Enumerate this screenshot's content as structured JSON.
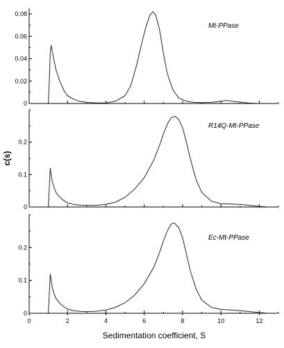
{
  "chart_data": {
    "type": "line",
    "xlabel": "Sedimentation coefficient, S",
    "ylabel": "c(s)",
    "xlim": [
      0,
      13
    ],
    "xticks": [
      0,
      2,
      4,
      6,
      8,
      10,
      12
    ],
    "xtick_labels": [
      "0",
      "2",
      "4",
      "6",
      "8",
      "10",
      "12"
    ],
    "panels": [
      {
        "label": "Mt-PPase",
        "ylim": [
          0,
          0.085
        ],
        "yticks": [
          0,
          0.02,
          0.04,
          0.06,
          0.08
        ],
        "ytick_labels": [
          "0",
          "0.02",
          "0.04",
          "0.06",
          "0.08"
        ],
        "x": [
          1.0,
          1.05,
          1.1,
          1.15,
          1.2,
          1.3,
          1.4,
          1.6,
          1.8,
          2.0,
          2.3,
          2.6,
          3.0,
          3.5,
          4.0,
          4.5,
          5.0,
          5.3,
          5.6,
          5.9,
          6.1,
          6.3,
          6.45,
          6.6,
          6.8,
          7.0,
          7.2,
          7.5,
          7.8,
          8.2,
          8.6,
          9.0,
          9.5,
          10.0,
          10.3,
          10.6,
          11.0,
          11.5,
          12.0
        ],
        "values": [
          0.0,
          0.02,
          0.046,
          0.052,
          0.047,
          0.038,
          0.03,
          0.02,
          0.012,
          0.007,
          0.004,
          0.002,
          0.001,
          0.0005,
          0.0005,
          0.002,
          0.007,
          0.016,
          0.034,
          0.056,
          0.069,
          0.079,
          0.082,
          0.079,
          0.066,
          0.045,
          0.027,
          0.012,
          0.005,
          0.002,
          0.001,
          0.0008,
          0.001,
          0.002,
          0.0028,
          0.002,
          0.0012,
          0.0004,
          0.0
        ]
      },
      {
        "label": "R14Q-Mt-PPase",
        "ylim": [
          0,
          0.3
        ],
        "yticks": [
          0,
          0.1,
          0.2
        ],
        "ytick_labels": [
          "0",
          "0.1",
          "0.2"
        ],
        "x": [
          1.0,
          1.05,
          1.1,
          1.15,
          1.2,
          1.3,
          1.4,
          1.6,
          1.8,
          2.0,
          2.3,
          2.6,
          3.0,
          3.5,
          4.0,
          4.5,
          5.0,
          5.5,
          6.0,
          6.5,
          6.8,
          7.0,
          7.2,
          7.4,
          7.6,
          7.8,
          8.0,
          8.2,
          8.4,
          8.7,
          9.0,
          9.5,
          10.0,
          10.5,
          11.0,
          11.5,
          12.0,
          12.5
        ],
        "values": [
          0.0,
          0.06,
          0.12,
          0.1,
          0.08,
          0.06,
          0.045,
          0.03,
          0.02,
          0.013,
          0.008,
          0.006,
          0.005,
          0.005,
          0.008,
          0.015,
          0.03,
          0.055,
          0.09,
          0.145,
          0.19,
          0.225,
          0.255,
          0.275,
          0.28,
          0.27,
          0.245,
          0.2,
          0.15,
          0.085,
          0.045,
          0.018,
          0.01,
          0.009,
          0.008,
          0.005,
          0.002,
          0.0
        ]
      },
      {
        "label": "Ec-Mt-PPase",
        "ylim": [
          0,
          0.3
        ],
        "yticks": [
          0,
          0.1,
          0.2
        ],
        "ytick_labels": [
          "0",
          "0.1",
          "0.2"
        ],
        "x": [
          1.0,
          1.05,
          1.1,
          1.15,
          1.2,
          1.3,
          1.4,
          1.6,
          1.8,
          2.0,
          2.3,
          2.6,
          3.0,
          3.5,
          4.0,
          4.5,
          5.0,
          5.5,
          6.0,
          6.5,
          6.8,
          7.0,
          7.2,
          7.4,
          7.5,
          7.6,
          7.8,
          8.0,
          8.2,
          8.4,
          8.7,
          9.0,
          9.5,
          10.0,
          10.5,
          11.0,
          11.5,
          12.0,
          12.5
        ],
        "values": [
          0.0,
          0.06,
          0.12,
          0.1,
          0.08,
          0.06,
          0.045,
          0.03,
          0.02,
          0.013,
          0.008,
          0.006,
          0.005,
          0.006,
          0.01,
          0.018,
          0.032,
          0.055,
          0.09,
          0.14,
          0.185,
          0.22,
          0.25,
          0.27,
          0.275,
          0.273,
          0.26,
          0.23,
          0.18,
          0.13,
          0.075,
          0.04,
          0.018,
          0.012,
          0.01,
          0.008,
          0.005,
          0.002,
          0.0
        ]
      }
    ]
  }
}
